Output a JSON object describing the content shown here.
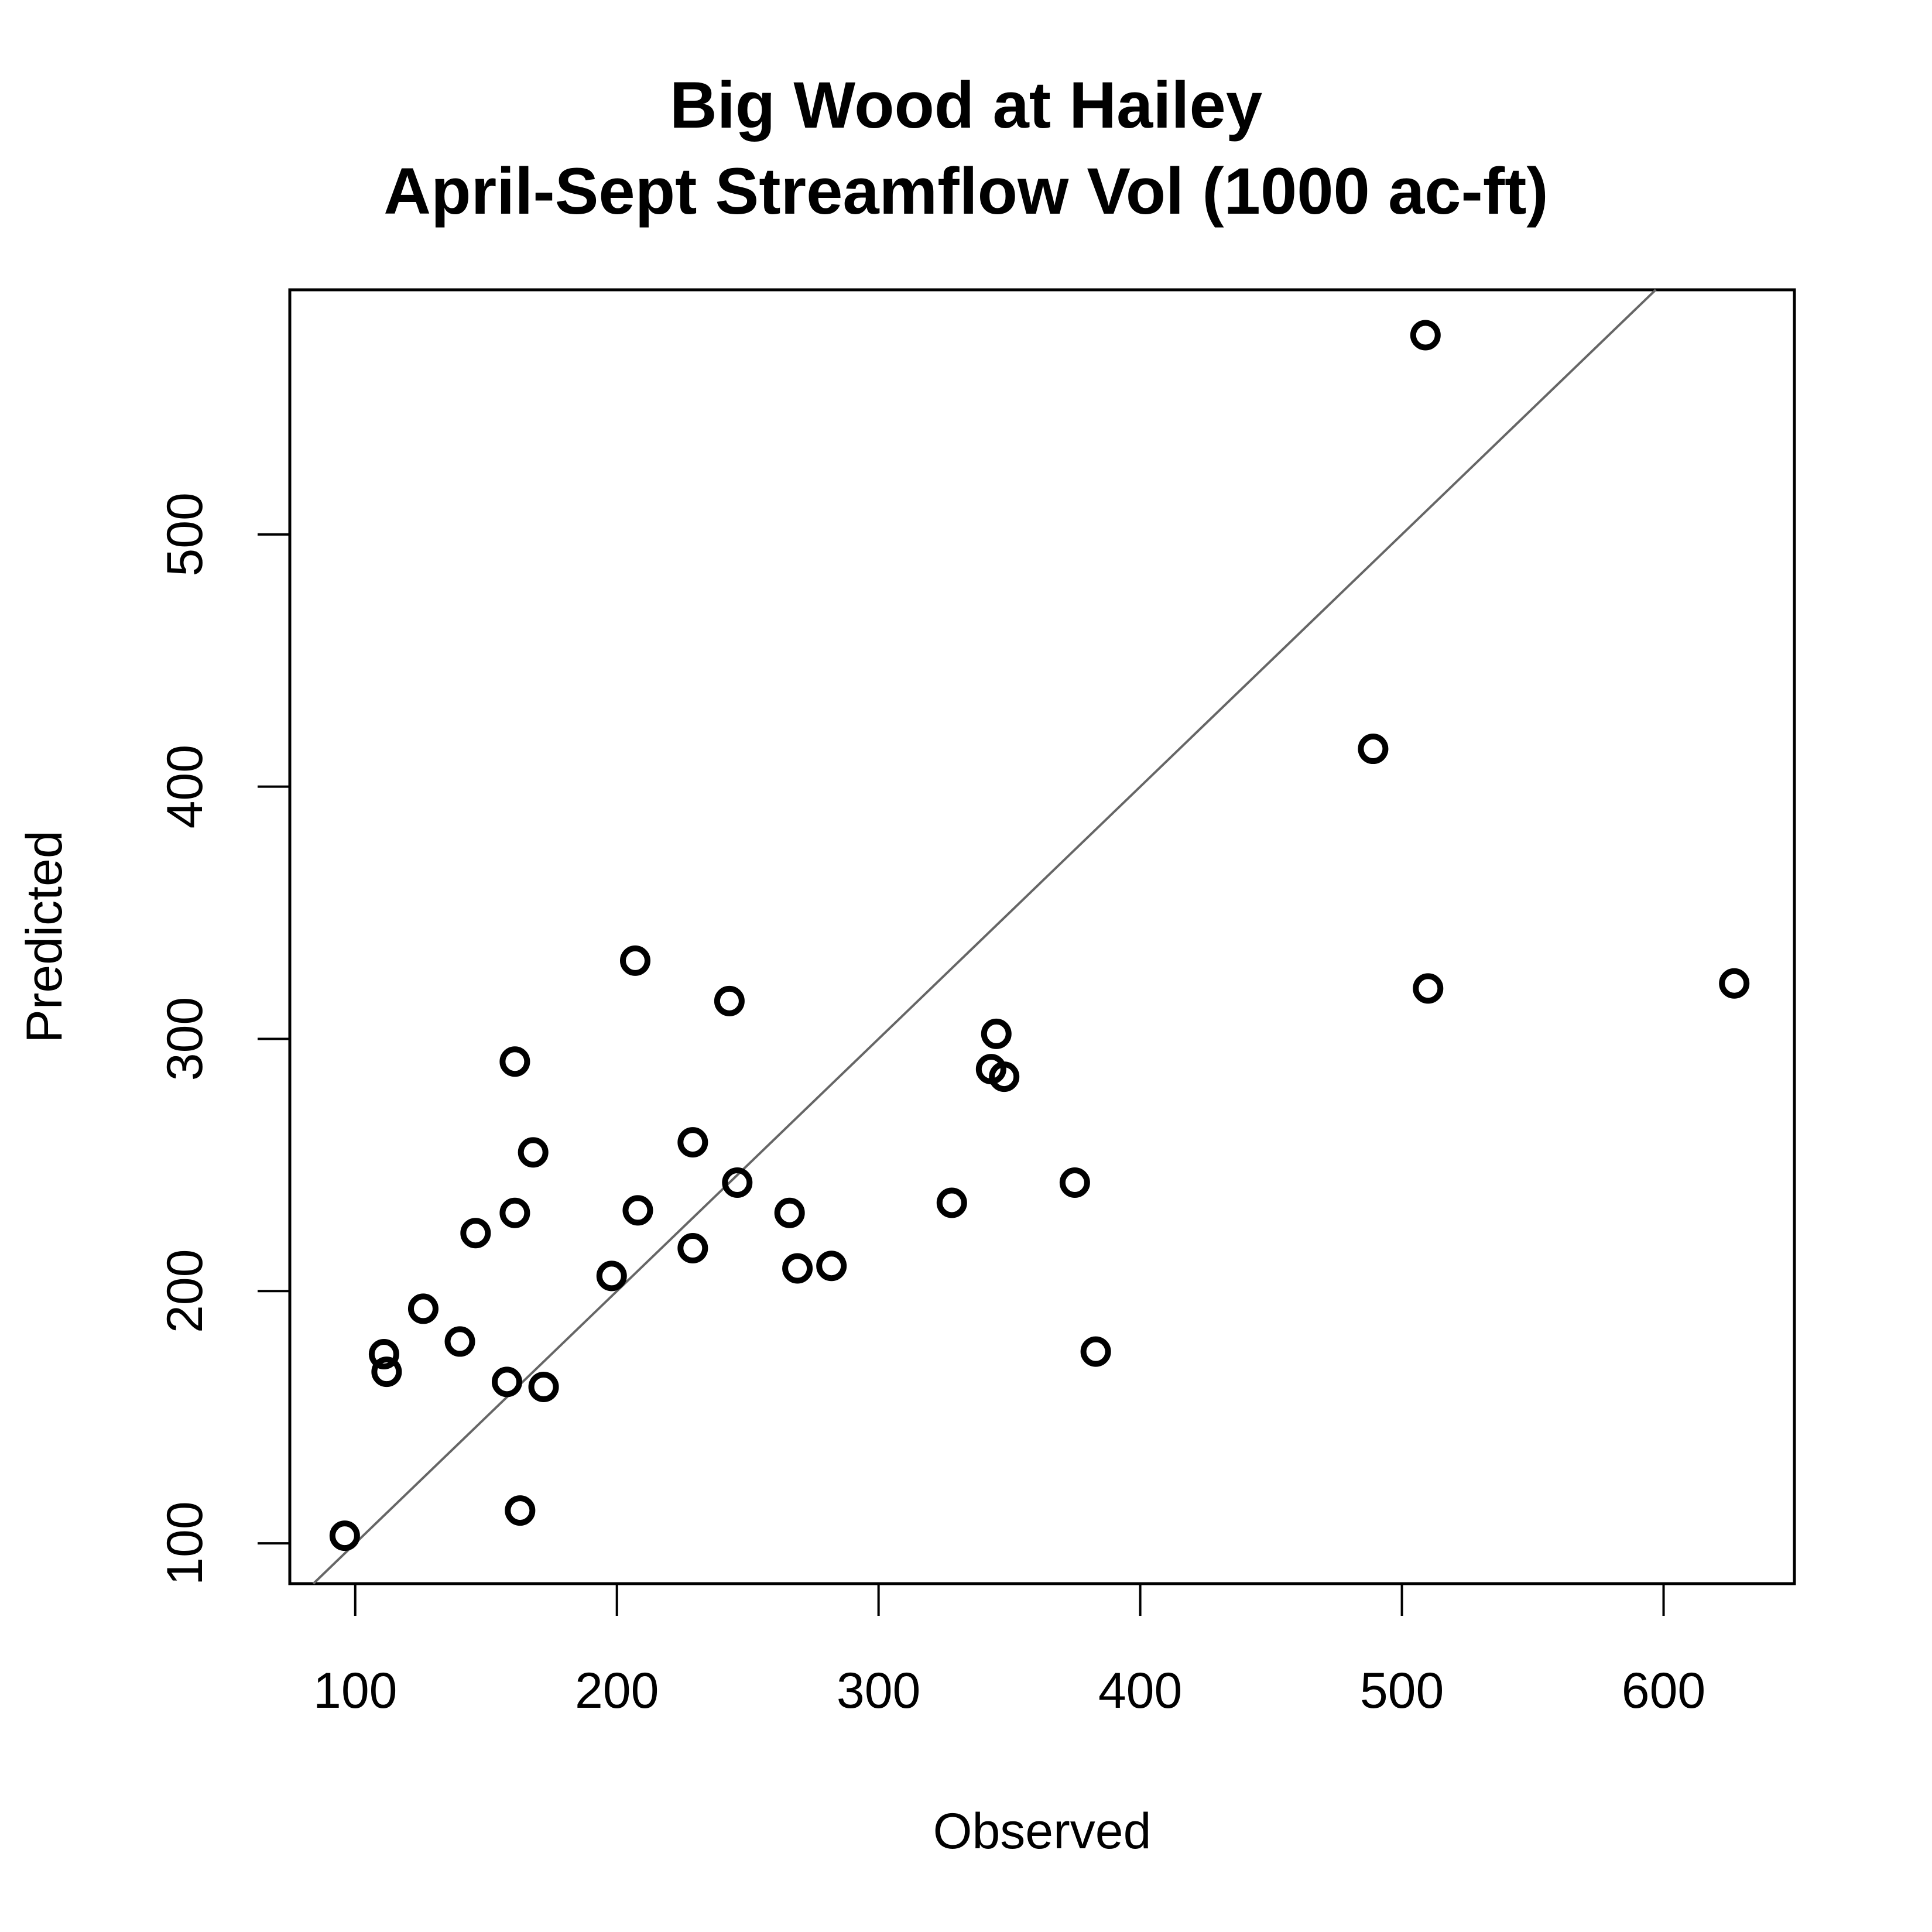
{
  "chart_data": {
    "type": "scatter",
    "title": "Big Wood at Hailey",
    "subtitle": "April-Sept Streamflow Vol (1000 ac-ft)",
    "xlabel": "Observed",
    "ylabel": "Predicted",
    "xlim": [
      75,
      650
    ],
    "ylim": [
      84,
      597
    ],
    "xticks": [
      100,
      200,
      300,
      400,
      500,
      600
    ],
    "yticks": [
      100,
      200,
      300,
      400,
      500
    ],
    "xtick_labels": [
      "100",
      "200",
      "300",
      "400",
      "500",
      "600"
    ],
    "ytick_labels": [
      "100",
      "200",
      "300",
      "400",
      "500"
    ],
    "grid": false,
    "reference_line": {
      "type": "1:1",
      "color": "#666666"
    },
    "marker": {
      "shape": "open-circle",
      "color": "#000000"
    },
    "points": [
      {
        "x": 96,
        "y": 103
      },
      {
        "x": 111,
        "y": 175
      },
      {
        "x": 112,
        "y": 168
      },
      {
        "x": 126,
        "y": 193
      },
      {
        "x": 140,
        "y": 180
      },
      {
        "x": 146,
        "y": 223
      },
      {
        "x": 158,
        "y": 164
      },
      {
        "x": 161,
        "y": 231
      },
      {
        "x": 161,
        "y": 291
      },
      {
        "x": 163,
        "y": 113
      },
      {
        "x": 168,
        "y": 255
      },
      {
        "x": 172,
        "y": 162
      },
      {
        "x": 198,
        "y": 206
      },
      {
        "x": 207,
        "y": 331
      },
      {
        "x": 208,
        "y": 232
      },
      {
        "x": 229,
        "y": 217
      },
      {
        "x": 229,
        "y": 259
      },
      {
        "x": 243,
        "y": 315
      },
      {
        "x": 246,
        "y": 243
      },
      {
        "x": 266,
        "y": 231
      },
      {
        "x": 269,
        "y": 209
      },
      {
        "x": 282,
        "y": 210
      },
      {
        "x": 328,
        "y": 235
      },
      {
        "x": 343,
        "y": 288
      },
      {
        "x": 345,
        "y": 302
      },
      {
        "x": 348,
        "y": 285
      },
      {
        "x": 375,
        "y": 243
      },
      {
        "x": 383,
        "y": 176
      },
      {
        "x": 489,
        "y": 415
      },
      {
        "x": 509,
        "y": 579
      },
      {
        "x": 510,
        "y": 320
      },
      {
        "x": 627,
        "y": 322
      }
    ]
  }
}
